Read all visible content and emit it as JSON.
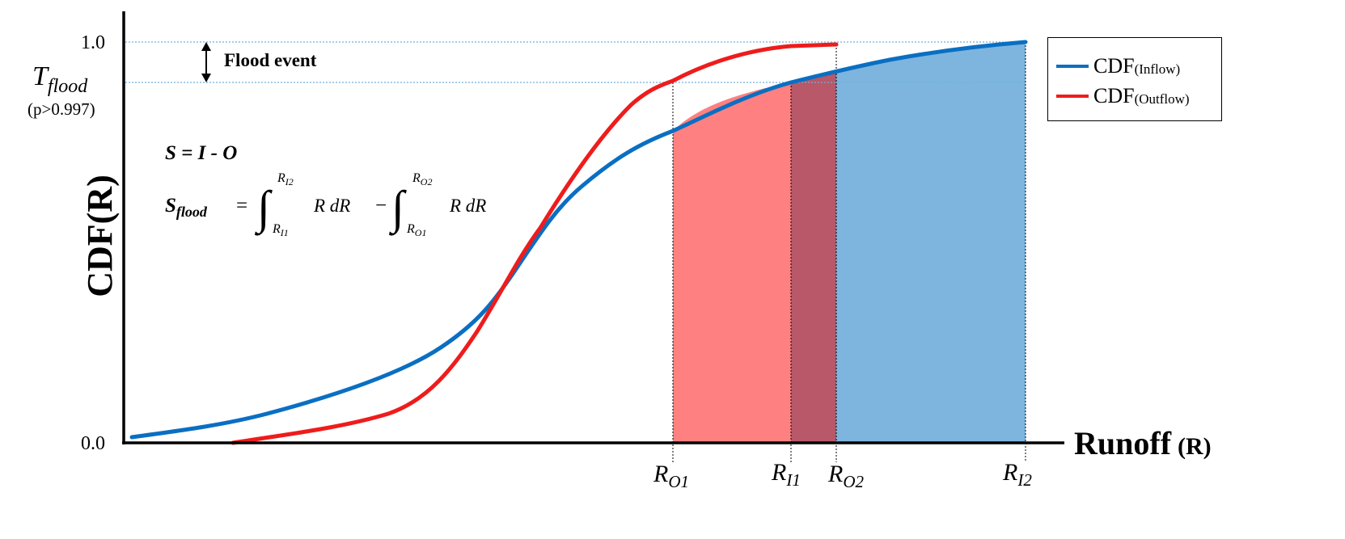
{
  "colors": {
    "inflow": "#0a6fc2",
    "outflow": "#ee1c1c",
    "fill_outflow": "#ff8080",
    "fill_overlap": "#b85868",
    "fill_inflow": "#7db5de",
    "guide": "#6fb0dc"
  },
  "axes": {
    "y_title": "CDF(R)",
    "x_title_main": "Runoff",
    "x_title_unit": "(R)",
    "y_tick_top": "1.0",
    "y_tick_bottom": "0.0"
  },
  "threshold": {
    "T_letter": "T",
    "T_sub": "flood",
    "prob": "(p>0.997)"
  },
  "annotation": {
    "flood_event": "Flood event"
  },
  "equations": {
    "line1": "S = I - O",
    "s_letter": "S",
    "s_sub": "flood",
    "equals": "=",
    "minus": "−",
    "int1_upper_letter": "R",
    "int1_upper_sub": "I2",
    "int1_lower_letter": "R",
    "int1_lower_sub": "I1",
    "int1_body": "R dR",
    "int2_upper_letter": "R",
    "int2_upper_sub": "O2",
    "int2_lower_letter": "R",
    "int2_lower_sub": "O1",
    "int2_body": "R dR"
  },
  "x_markers": [
    {
      "letter": "R",
      "sub": "O1"
    },
    {
      "letter": "R",
      "sub": "I1"
    },
    {
      "letter": "R",
      "sub": "O2"
    },
    {
      "letter": "R",
      "sub": "I2"
    }
  ],
  "legend": [
    {
      "main": "CDF",
      "sub": "(Inflow)",
      "color": "#0a6fc2"
    },
    {
      "main": "CDF",
      "sub": "(Outflow)",
      "color": "#ee1c1c"
    }
  ]
}
